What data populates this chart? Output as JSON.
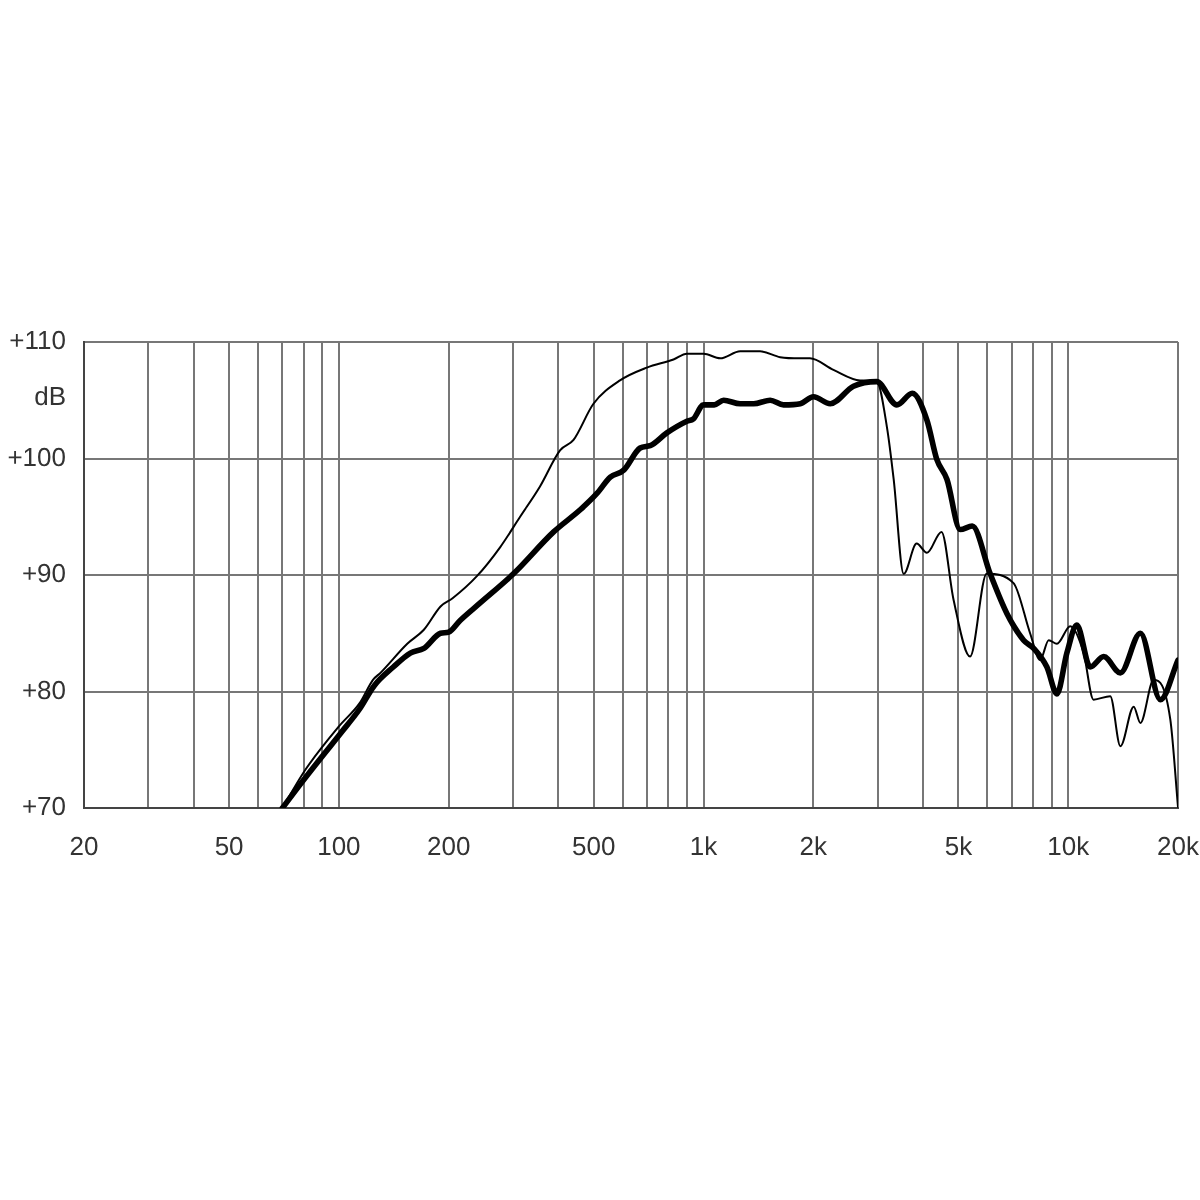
{
  "chart_data": {
    "type": "line",
    "ylabel": "dB",
    "log": "x",
    "grid": true,
    "xlim": [
      20,
      20000
    ],
    "xticks": [
      20,
      {
        "value": 30,
        "label": null
      },
      {
        "value": 40,
        "label": null
      },
      50,
      {
        "value": 60,
        "label": null
      },
      {
        "value": 70,
        "label": null
      },
      {
        "value": 80,
        "label": null
      },
      {
        "value": 90,
        "label": null
      },
      100,
      200,
      {
        "value": 300,
        "label": null
      },
      {
        "value": 400,
        "label": null
      },
      500,
      {
        "value": 600,
        "label": null
      },
      {
        "value": 700,
        "label": null
      },
      {
        "value": 800,
        "label": null
      },
      {
        "value": 900,
        "label": null
      },
      {
        "value": 1000,
        "label": "1k"
      },
      {
        "value": 2000,
        "label": "2k"
      },
      {
        "value": 3000,
        "label": null
      },
      {
        "value": 4000,
        "label": null
      },
      {
        "value": 5000,
        "label": "5k"
      },
      {
        "value": 6000,
        "label": null
      },
      {
        "value": 7000,
        "label": null
      },
      {
        "value": 8000,
        "label": null
      },
      {
        "value": 9000,
        "label": null
      },
      {
        "value": 10000,
        "label": "10k"
      },
      {
        "value": 20000,
        "label": "20k"
      }
    ],
    "ylim": [
      70,
      110
    ],
    "yticks": [
      {
        "value": 70,
        "label": "+70"
      },
      {
        "value": 80,
        "label": "+80"
      },
      {
        "value": 90,
        "label": "+90"
      },
      {
        "value": 100,
        "label": "+100"
      },
      {
        "value": 110,
        "label": "+110"
      }
    ],
    "series": [
      {
        "color": "#000000",
        "x": [
          70,
          80,
          101,
          114,
          125,
          141,
          157,
          171,
          190,
          200,
          215,
          244,
          301,
          388,
          459,
          510,
          555,
          604,
          670,
          714,
          793,
          900,
          938,
          1000,
          1070,
          1135,
          1260,
          1372,
          1523,
          1657,
          1842,
          2002,
          2225,
          2577,
          2985,
          3389,
          3735,
          4097,
          4364,
          4651,
          5056,
          5454,
          6110,
          6788,
          7545,
          8040,
          8740,
          9310,
          9915,
          10560,
          11490,
          12510,
          13900,
          15770,
          17900,
          20000
        ],
        "values": [
          70,
          72.4,
          76.4,
          78.5,
          80.5,
          82.1,
          83.3,
          83.7,
          85.0,
          85.1,
          86.1,
          87.6,
          90.1,
          93.7,
          95.6,
          97.0,
          98.4,
          99.0,
          100.9,
          101.1,
          102.2,
          103.2,
          103.4,
          104.6,
          104.6,
          105.0,
          104.7,
          104.7,
          105.0,
          104.6,
          104.7,
          105.3,
          104.7,
          106.2,
          106.6,
          104.6,
          105.6,
          103.3,
          99.9,
          98.2,
          93.9,
          94.2,
          90.1,
          86.7,
          84.4,
          83.7,
          82.1,
          79.8,
          83.3,
          85.7,
          82.1,
          83.0,
          81.6,
          85.0,
          79.3,
          82.7
        ]
      },
      {
        "color": "#000000",
        "x": [
          70,
          81,
          100,
          114,
          124,
          130,
          154,
          171,
          190,
          205,
          239,
          277,
          314,
          356,
          404,
          440,
          499,
          590,
          699,
          827,
          900,
          1000,
          1111,
          1260,
          1429,
          1622,
          1842,
          1958,
          2271,
          2688,
          2985,
          3183,
          3322,
          3538,
          3840,
          4097,
          4493,
          4846,
          5382,
          5973,
          7080,
          7860,
          8375,
          8840,
          9310,
          10130,
          11020,
          11730,
          13040,
          13900,
          15120,
          15770,
          17150,
          19050,
          20000
        ],
        "values": [
          70,
          73.3,
          77.0,
          79.0,
          81.0,
          81.6,
          84.1,
          85.3,
          87.3,
          88.0,
          89.9,
          92.4,
          95.0,
          97.6,
          100.7,
          101.6,
          104.7,
          106.7,
          107.8,
          108.5,
          109.0,
          109.0,
          108.6,
          109.2,
          109.2,
          108.7,
          108.6,
          108.6,
          107.6,
          106.7,
          106.6,
          102.7,
          98.2,
          90.1,
          92.7,
          91.9,
          93.7,
          87.9,
          83.0,
          90.1,
          89.3,
          85.0,
          82.7,
          84.4,
          84.1,
          85.6,
          83.3,
          79.3,
          79.6,
          75.3,
          78.7,
          77.3,
          81.0,
          77.6,
          70.1
        ]
      }
    ]
  }
}
